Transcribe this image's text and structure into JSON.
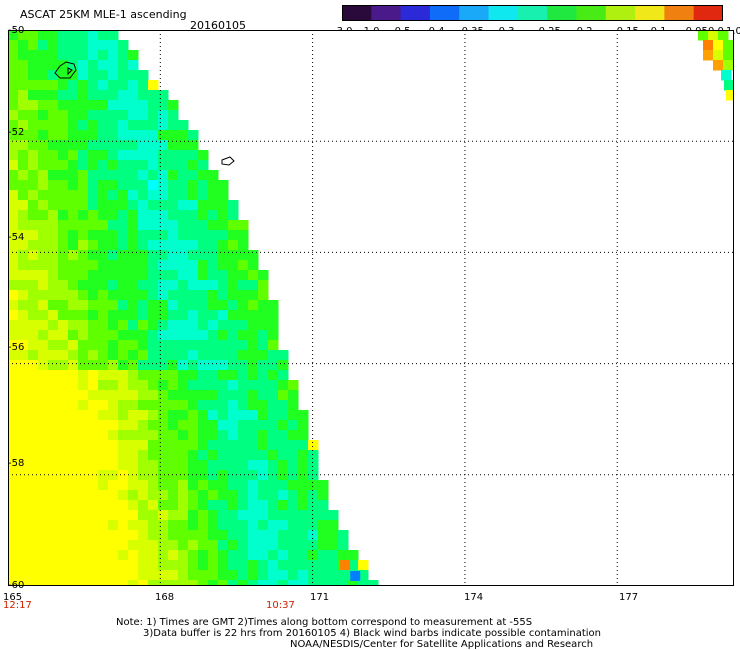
{
  "title": "ASCAT 25KM MLE-1 ascending",
  "date": "20160105",
  "colorbar": {
    "tick_labels": [
      "-3.0",
      "-1.0",
      "-0.5",
      "-0.4",
      "-0.35",
      "-0.3",
      "-0.25",
      "-0.2",
      "-0.15",
      "-0.1",
      "-0.05",
      "0.0",
      "1.0"
    ],
    "colors": [
      "#2a0a3a",
      "#4a1a8a",
      "#2a2ad8",
      "#0f6cf8",
      "#1aa8f8",
      "#10e8f0",
      "#18f0b0",
      "#20e840",
      "#48ec14",
      "#b0f010",
      "#f0e818",
      "#f08010",
      "#e02810"
    ]
  },
  "axes": {
    "x_ticks": [
      "165",
      "168",
      "171",
      "174",
      "177"
    ],
    "y_ticks": [
      "-50",
      "-52",
      "-54",
      "-56",
      "-58",
      "-60"
    ],
    "grid": "dotted"
  },
  "times": {
    "left": "12:17",
    "middle": "10:37"
  },
  "notes": [
    "Note: 1) Times are GMT 2)Times along bottom correspond to measurement at -55S",
    "3)Data buffer is 22 hrs from 20160105 4) Black wind barbs indicate possible contamination",
    "NOAA/NESDIS/Center for Satellite Applications and Research"
  ],
  "map_data": {
    "lon_range": [
      165,
      179.3
    ],
    "lat_range": [
      -60,
      -50
    ],
    "swaths": [
      {
        "name": "main-swath",
        "boundary_lat_lon": [
          [
            -50,
            167.1
          ],
          [
            -51,
            168.0
          ],
          [
            -52,
            168.8
          ],
          [
            -53,
            169.4
          ],
          [
            -54,
            169.9
          ],
          [
            -55,
            170.3
          ],
          [
            -56,
            170.5
          ],
          [
            -57,
            170.9
          ],
          [
            -58,
            171.2
          ],
          [
            -59,
            171.6
          ],
          [
            -60,
            172.3
          ]
        ]
      },
      {
        "name": "right-swath-fragment",
        "lat_top": -50,
        "lat_bottom": -51.3,
        "lon_right": 179.3
      }
    ]
  }
}
